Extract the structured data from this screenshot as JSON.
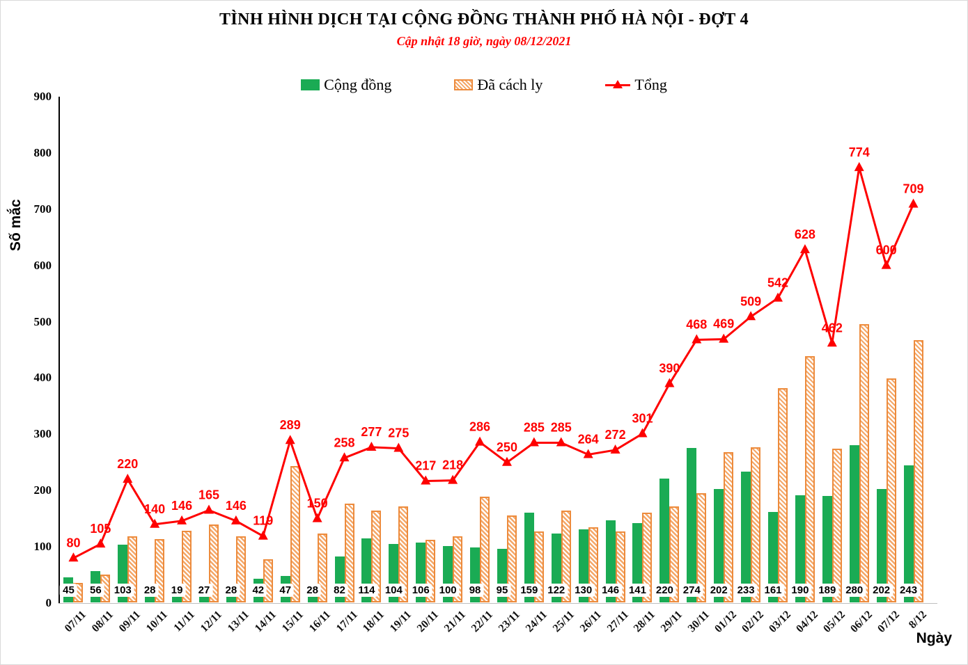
{
  "title": "TÌNH HÌNH DỊCH TẠI CỘNG ĐỒNG THÀNH PHỐ HÀ NỘI - ĐỢT 4",
  "subtitle": "Cập nhật 18 giờ, ngày 08/12/2021",
  "ylabel": "Số mắc",
  "xlabel": "Ngày",
  "legend": {
    "community": "Cộng đồng",
    "quarantined": "Đã cách ly",
    "total": "Tổng"
  },
  "colors": {
    "green": "#1AAB54",
    "orange": "#ED8B3C",
    "orange_light": "#F4A768",
    "red": "#FE0000"
  },
  "chart_data": {
    "type": "bar",
    "title": "TÌNH HÌNH DỊCH TẠI CỘNG ĐỒNG THÀNH PHỐ HÀ NỘI - ĐỢT 4",
    "subtitle": "Cập nhật 18 giờ, ngày 08/12/2021",
    "xlabel": "Ngày",
    "ylabel": "Số mắc",
    "ylim": [
      0,
      900
    ],
    "ytick_step": 100,
    "grid": false,
    "legend_position": "top",
    "categories": [
      "07/11",
      "08/11",
      "09/11",
      "10/11",
      "11/11",
      "12/11",
      "13/11",
      "14/11",
      "15/11",
      "16/11",
      "17/11",
      "18/11",
      "19/11",
      "20/11",
      "21/11",
      "22/11",
      "23/11",
      "24/11",
      "25/11",
      "26/11",
      "27/11",
      "28/11",
      "29/11",
      "30/11",
      "01/12",
      "02/12",
      "03/12",
      "04/12",
      "05/12",
      "06/12",
      "07/12",
      "8/12"
    ],
    "series": [
      {
        "name": "Cộng đồng",
        "type": "bar",
        "color": "#1AAB54",
        "values": [
          45,
          56,
          103,
          28,
          19,
          27,
          28,
          42,
          47,
          28,
          82,
          114,
          104,
          106,
          100,
          98,
          95,
          159,
          122,
          130,
          146,
          141,
          220,
          274,
          202,
          233,
          161,
          190,
          189,
          280,
          202,
          243
        ]
      },
      {
        "name": "Đã cách ly",
        "type": "bar",
        "style": "hatched",
        "color": "#ED8B3C",
        "values": [
          35,
          49,
          117,
          112,
          127,
          138,
          118,
          77,
          242,
          122,
          176,
          163,
          171,
          111,
          118,
          188,
          155,
          126,
          163,
          134,
          126,
          160,
          170,
          194,
          267,
          276,
          381,
          438,
          273,
          494,
          398,
          466
        ]
      },
      {
        "name": "Tổng",
        "type": "line",
        "color": "#FE0000",
        "marker": "triangle-up",
        "values": [
          80,
          105,
          220,
          140,
          146,
          165,
          146,
          119,
          289,
          150,
          258,
          277,
          275,
          217,
          218,
          286,
          250,
          285,
          285,
          264,
          272,
          301,
          390,
          468,
          469,
          509,
          542,
          628,
          462,
          774,
          600,
          709
        ]
      }
    ]
  }
}
